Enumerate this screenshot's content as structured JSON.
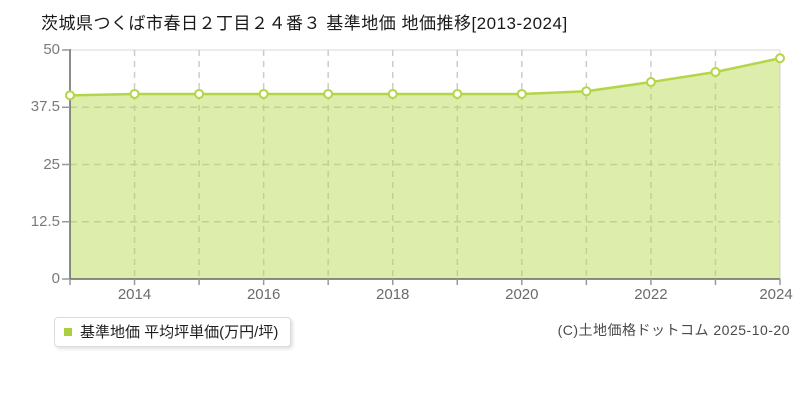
{
  "title": "茨城県つくば市春日２丁目２４番３ 基準地価 地価推移[2013-2024]",
  "legend": {
    "label": "基準地価 平均坪単価(万円/坪)",
    "marker_color": "#abd03f"
  },
  "footer": {
    "copyright": "(C)土地価格ドットコム 2025-10-20"
  },
  "chart_data": {
    "type": "area",
    "title": "茨城県つくば市春日２丁目２４番３ 基準地価 地価推移[2013-2024]",
    "x": [
      2013,
      2014,
      2015,
      2016,
      2017,
      2018,
      2019,
      2020,
      2021,
      2022,
      2023,
      2024
    ],
    "series": [
      {
        "name": "基準地価 平均坪単価(万円/坪)",
        "values": [
          40.1,
          40.4,
          40.4,
          40.4,
          40.4,
          40.4,
          40.4,
          40.4,
          41.0,
          43.0,
          45.2,
          48.2
        ]
      }
    ],
    "ylabel": "平均坪単価(万円/坪)",
    "xlabel": "",
    "ylim": [
      0,
      50
    ],
    "y_ticks": [
      0,
      12.5,
      25,
      37.5,
      50
    ],
    "y_tick_labels": [
      "0",
      "12.5",
      "25",
      "37.5",
      "50"
    ],
    "x_tick_labels": [
      "2014",
      "2016",
      "2018",
      "2020",
      "2022",
      "2024"
    ],
    "grid": true,
    "grid_style": "dashed",
    "legend_position": "bottom-left",
    "colors": {
      "line": "#b4d646",
      "fill": "#b4d646",
      "fill_opacity": 0.45,
      "marker_fill": "#ffffff",
      "grid": "#cccccc",
      "axis": "#666666",
      "tick": "#999999",
      "plot_border": "#d9d9d9",
      "y_tick_label": "#7a7a7a",
      "x_tick_label": "#6b6b6b"
    }
  }
}
